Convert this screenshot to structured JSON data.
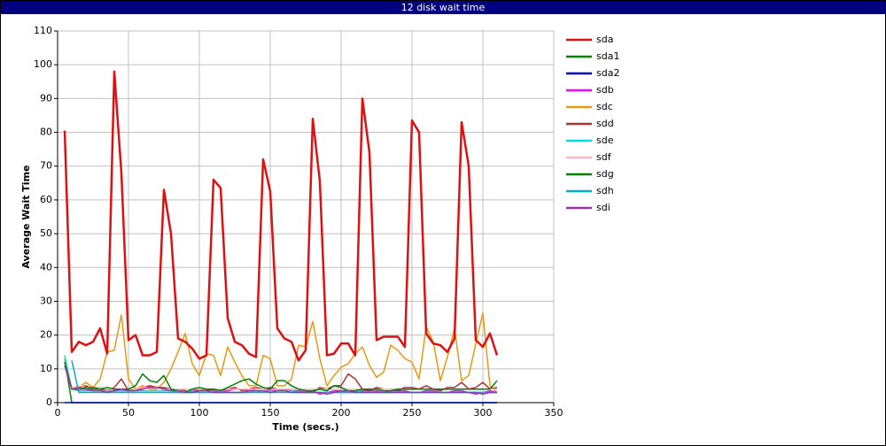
{
  "chart_data": {
    "type": "line",
    "title": "12 disk wait time",
    "xlabel": "Time (secs.)",
    "ylabel": "Average Wait Time",
    "xlim": [
      0,
      350
    ],
    "xticks": [
      0,
      50,
      100,
      150,
      200,
      250,
      300,
      350
    ],
    "ylim": [
      0,
      110
    ],
    "yticks": [
      0,
      10,
      20,
      30,
      40,
      50,
      60,
      70,
      80,
      90,
      100,
      110
    ],
    "grid": true,
    "x": [
      5,
      10,
      15,
      20,
      25,
      30,
      35,
      40,
      45,
      50,
      55,
      60,
      65,
      70,
      75,
      80,
      85,
      90,
      95,
      100,
      105,
      110,
      115,
      120,
      125,
      130,
      135,
      140,
      145,
      150,
      155,
      160,
      165,
      170,
      175,
      180,
      185,
      190,
      195,
      200,
      205,
      210,
      215,
      220,
      225,
      230,
      235,
      240,
      245,
      250,
      255,
      260,
      265,
      270,
      275,
      280,
      285,
      290,
      295,
      300,
      305,
      310
    ],
    "series": [
      {
        "name": "sda",
        "color": "#dd1111",
        "values": [
          80.5,
          15,
          18,
          17,
          18,
          22,
          14.5,
          98,
          68,
          18.5,
          20,
          14,
          14,
          15,
          63,
          50,
          19,
          18,
          16,
          13,
          14,
          66,
          63.5,
          25,
          18,
          17,
          14.5,
          13.5,
          72,
          62.5,
          22,
          19,
          18,
          12.5,
          15.5,
          84,
          65.5,
          14,
          14.5,
          17.5,
          17.5,
          14,
          90,
          74,
          18.5,
          19.5,
          19.5,
          19.5,
          16.5,
          83.5,
          80,
          20.5,
          17.5,
          17,
          15,
          19,
          83,
          70,
          18.5,
          16.5,
          20.5,
          14
        ]
      },
      {
        "name": "sda1",
        "color": "#008800",
        "values": [
          13,
          0,
          0,
          0,
          0,
          0,
          0,
          0,
          0,
          0,
          0,
          0,
          0,
          0,
          0,
          0,
          0,
          0,
          0,
          0,
          0,
          0,
          0,
          0,
          0,
          0,
          0,
          0,
          0,
          0,
          0,
          0,
          0,
          0,
          0,
          0,
          0,
          0,
          0,
          0,
          0,
          0,
          0,
          0,
          0,
          0,
          0,
          0,
          0,
          0,
          0,
          0,
          0,
          0,
          0,
          0,
          0,
          0,
          0,
          0,
          0,
          0
        ]
      },
      {
        "name": "sda2",
        "color": "#0000aa",
        "values": [
          0,
          0,
          0,
          0,
          0,
          0,
          0,
          0,
          0,
          0,
          0,
          0,
          0,
          0,
          0,
          0,
          0,
          0,
          0,
          0,
          0,
          0,
          0,
          0,
          0,
          0,
          0,
          0,
          0,
          0,
          0,
          0,
          0,
          0,
          0,
          0,
          0,
          0,
          0,
          0,
          0,
          0,
          0,
          0,
          0,
          0,
          0,
          0,
          0,
          0,
          0,
          0,
          0,
          0,
          0,
          0,
          0,
          0,
          0,
          0,
          0,
          0
        ]
      },
      {
        "name": "sdb",
        "color": "#ff00ff",
        "values": [
          12,
          4,
          4.5,
          4,
          4,
          4,
          3.5,
          3.5,
          3.5,
          3.5,
          4,
          4.5,
          5,
          4.5,
          4,
          4,
          3.5,
          3,
          3.5,
          4,
          4,
          3.5,
          3,
          3.5,
          4,
          4,
          3.5,
          4,
          4,
          3.5,
          4,
          4,
          3.5,
          3.5,
          3,
          3.5,
          2.5,
          3,
          3.5,
          3.5,
          3,
          3,
          3.5,
          3.5,
          3.5,
          3,
          3.5,
          3.5,
          3.5,
          3,
          3,
          3.5,
          3.5,
          3,
          3,
          3.5,
          3.5,
          3,
          2.5,
          3,
          3.5,
          3
        ]
      },
      {
        "name": "sdc",
        "color": "#e69a10",
        "values": [
          13,
          4,
          4.5,
          6,
          4.5,
          7,
          15,
          15.5,
          26,
          7,
          4,
          5,
          4,
          4,
          6,
          10,
          15,
          20.5,
          11.5,
          8,
          14.5,
          14,
          8,
          16.5,
          12,
          8,
          5,
          5,
          14,
          13,
          5,
          5,
          7,
          17,
          16.5,
          24,
          13,
          5,
          8,
          10.5,
          11.5,
          14.5,
          16.5,
          11,
          7.5,
          9,
          17,
          15.5,
          13,
          12,
          7,
          22.5,
          18,
          6.5,
          13.5,
          22,
          6.5,
          8,
          17.5,
          26.5,
          5,
          3
        ]
      },
      {
        "name": "sdd",
        "color": "#aa3333",
        "values": [
          11,
          4,
          4.5,
          5,
          4,
          4,
          3.5,
          4.5,
          7,
          3.5,
          4,
          4,
          5,
          4.5,
          4.5,
          4,
          4,
          3.5,
          3,
          4,
          3.5,
          4,
          3.5,
          4,
          4.5,
          3.5,
          4,
          4.5,
          4,
          4.5,
          4,
          3.5,
          4,
          4,
          3.5,
          3,
          4.5,
          4,
          5,
          5,
          8.5,
          7,
          4,
          3.5,
          4.5,
          4,
          4,
          3.5,
          4.5,
          4.5,
          4,
          5,
          4,
          3.5,
          4.5,
          4.5,
          6,
          4,
          4.5,
          6,
          4,
          4.5
        ]
      },
      {
        "name": "sde",
        "color": "#00e0e0",
        "values": [
          14,
          4,
          3.5,
          3.5,
          3.5,
          3.5,
          3.5,
          3.5,
          3.5,
          3.5,
          3.5,
          3.5,
          3.5,
          3.5,
          3.5,
          3.5,
          3,
          3,
          3.5,
          3,
          3,
          3,
          3,
          3,
          3,
          3,
          3,
          3.5,
          3,
          3.5,
          3.5,
          3.5,
          3.5,
          3,
          3,
          3,
          3,
          3,
          3,
          3,
          3,
          3.5,
          3,
          3,
          3,
          3,
          3,
          3,
          3,
          3,
          3,
          3,
          3,
          3,
          3,
          3,
          3,
          3,
          3,
          3,
          3,
          3
        ]
      },
      {
        "name": "sdf",
        "color": "#ffb6c1",
        "values": [
          12,
          4.5,
          5,
          4.5,
          4.5,
          4.5,
          4,
          4,
          4,
          4,
          4,
          4.5,
          4.5,
          4.5,
          4,
          4,
          4,
          4,
          4,
          4,
          4,
          4,
          4,
          4,
          4,
          4,
          4,
          4,
          4,
          4,
          4,
          4,
          4,
          4,
          4,
          4,
          4,
          4,
          4,
          4,
          4,
          4,
          4,
          4,
          4,
          4,
          4,
          4,
          4,
          4,
          4,
          4,
          4,
          4,
          4,
          4,
          4,
          4,
          4,
          4,
          4,
          4
        ]
      },
      {
        "name": "sdg",
        "color": "#008000",
        "values": [
          12,
          4,
          4,
          4.5,
          4.5,
          4,
          4.5,
          4,
          4,
          4,
          5,
          8.5,
          6.5,
          6,
          8,
          4,
          3.5,
          3,
          4,
          4.5,
          4,
          4,
          3.5,
          4.5,
          5.5,
          6.5,
          7,
          5.5,
          4.5,
          4,
          6.5,
          6.5,
          5,
          4,
          3.5,
          3.5,
          4,
          3.5,
          5,
          4.5,
          3.5,
          3.5,
          4,
          4,
          4,
          3.5,
          3.5,
          4,
          4,
          4,
          4,
          4,
          4,
          4,
          4,
          4,
          4,
          4,
          4,
          4,
          4,
          6.5
        ]
      },
      {
        "name": "sdh",
        "color": "#00b0c8",
        "values": [
          null,
          12.5,
          3,
          3,
          3,
          3,
          3,
          3,
          3,
          3,
          3,
          3,
          3,
          3,
          3,
          3,
          3,
          3,
          3,
          3,
          3,
          3,
          3,
          3,
          3,
          3,
          3,
          3,
          3,
          3,
          3,
          3,
          3,
          3,
          3,
          3,
          3,
          3,
          3,
          3,
          3,
          3,
          3,
          3,
          3,
          3,
          3,
          3,
          3,
          3,
          3,
          3,
          3,
          3,
          3,
          3,
          3,
          3,
          3,
          3,
          3,
          3
        ]
      },
      {
        "name": "sdi",
        "color": "#9933aa",
        "values": [
          11,
          4,
          4,
          4,
          3.5,
          3.5,
          3,
          3.5,
          4,
          3.5,
          3.5,
          4,
          4.5,
          4.5,
          4,
          3.5,
          3.5,
          3,
          3,
          3.5,
          3.5,
          3,
          3,
          3,
          3,
          3,
          3.5,
          3.5,
          3.5,
          3,
          3.5,
          3.5,
          3,
          3,
          3,
          3,
          3,
          2.5,
          3,
          3.5,
          3.5,
          3,
          3,
          3,
          3,
          3,
          3,
          3,
          3,
          3,
          3,
          3,
          3,
          3,
          3,
          3,
          3,
          3,
          3,
          2.5,
          3,
          3
        ]
      }
    ]
  }
}
